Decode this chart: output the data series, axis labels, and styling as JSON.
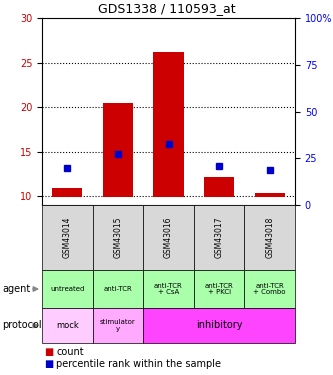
{
  "title": "GDS1338 / 110593_at",
  "samples": [
    "GSM43014",
    "GSM43015",
    "GSM43016",
    "GSM43017",
    "GSM43018"
  ],
  "count_values": [
    10.9,
    20.5,
    26.2,
    12.1,
    10.3
  ],
  "percentile_values": [
    13.2,
    14.7,
    15.8,
    13.4,
    12.9
  ],
  "ylim_left": [
    9,
    30
  ],
  "ylim_right": [
    0,
    100
  ],
  "yticks_left": [
    10,
    15,
    20,
    25,
    30
  ],
  "yticks_right": [
    0,
    25,
    50,
    75,
    100
  ],
  "ytick_labels_right": [
    "0",
    "25",
    "50",
    "75",
    "100%"
  ],
  "bar_color": "#cc0000",
  "dot_color": "#0000cc",
  "bar_bottom": 9.85,
  "agent_labels": [
    "untreated",
    "anti-TCR",
    "anti-TCR\n+ CsA",
    "anti-TCR\n+ PKCi",
    "anti-TCR\n+ Combo"
  ],
  "agent_bg": "#aaffaa",
  "protocol_mock_bg": "#ffccff",
  "protocol_stim_bg": "#ffaaff",
  "protocol_inhib_bg": "#ff44ff",
  "sample_bg": "#d8d8d8",
  "legend_count_color": "#cc0000",
  "legend_pct_color": "#0000cc",
  "arrow_color": "#888888"
}
